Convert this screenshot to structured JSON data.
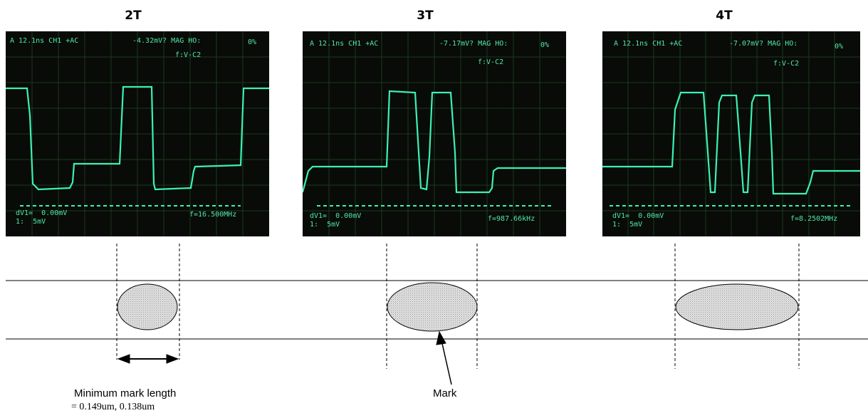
{
  "panels": [
    {
      "title": "2T",
      "readout_top": "A 12.1ns CH1 +AC",
      "readout_top_value": "-4.32mV? MAG HO:",
      "readout_top_pct": "0%",
      "readout_cursor": "f:V-C2",
      "readout_dv": "dV1=  0.00mV",
      "readout_scale": "1:  5mV",
      "readout_freq": "f=16.500MHz"
    },
    {
      "title": "3T",
      "readout_top": "A 12.1ns CH1 +AC",
      "readout_top_value": "-7.17mV? MAG HO:",
      "readout_top_pct": "0%",
      "readout_cursor": "f:V-C2",
      "readout_dv": "dV1=  0.00mV",
      "readout_scale": "1:  5mV",
      "readout_freq": "f=987.66kHz"
    },
    {
      "title": "4T",
      "readout_top": "A 12.1ns CH1 +AC",
      "readout_top_value": "-7.07mV? MAG HO:",
      "readout_top_pct": "0%",
      "readout_cursor": "f:V-C2",
      "readout_dv": "dV1=  0.00mV",
      "readout_scale": "1:  5mV",
      "readout_freq": "f=8.2502MHz"
    }
  ],
  "labels": {
    "minimum_mark_length": "Minimum mark length",
    "minimum_mark_value": "= 0.149um,  0.138um",
    "mark": "Mark"
  },
  "colors": {
    "trace": "#3cf0b4",
    "screen": "#080b08",
    "mark_fill": "#d8d8d8"
  }
}
